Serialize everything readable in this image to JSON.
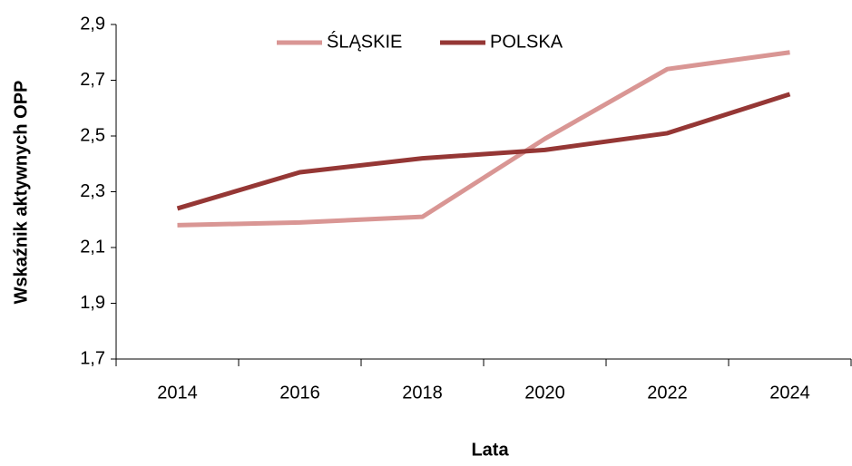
{
  "chart_data": {
    "type": "line",
    "x_label": "Lata",
    "y_label": "Wskaźnik aktywnych OPP",
    "categories": [
      "2014",
      "2016",
      "2018",
      "2020",
      "2022",
      "2024"
    ],
    "series": [
      {
        "name": "ŚLĄSKIE",
        "color": "#d99694",
        "values": [
          2.18,
          2.19,
          2.21,
          2.49,
          2.74,
          2.8
        ]
      },
      {
        "name": "POLSKA",
        "color": "#953735",
        "values": [
          2.24,
          2.37,
          2.42,
          2.45,
          2.51,
          2.65
        ]
      }
    ],
    "ylim": [
      1.7,
      2.9
    ],
    "yticks": [
      {
        "value": 1.7,
        "label": "1,7"
      },
      {
        "value": 1.9,
        "label": "1,9"
      },
      {
        "value": 2.1,
        "label": "2,1"
      },
      {
        "value": 2.3,
        "label": "2,3"
      },
      {
        "value": 2.5,
        "label": "2,5"
      },
      {
        "value": 2.7,
        "label": "2,7"
      },
      {
        "value": 2.9,
        "label": "2,9"
      }
    ],
    "grid": false,
    "legend": "top"
  }
}
